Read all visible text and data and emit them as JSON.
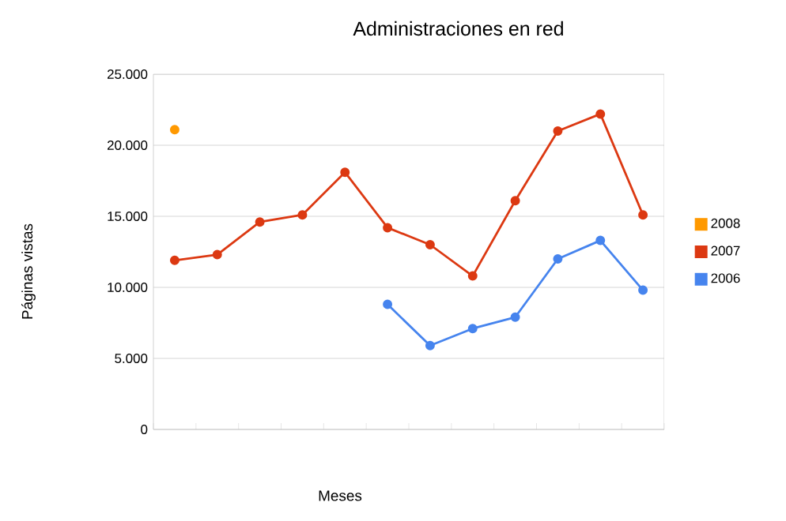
{
  "chart_data": {
    "type": "line",
    "title": "Administraciones en red",
    "xlabel": "Meses",
    "ylabel": "Páginas vistas",
    "categories": [
      null,
      null,
      null,
      null,
      null,
      null,
      null,
      null,
      null,
      null,
      null,
      null
    ],
    "series": [
      {
        "name": "2008",
        "color": "#ff9900",
        "values": [
          21100,
          null,
          null,
          null,
          null,
          null,
          null,
          null,
          null,
          null,
          null,
          null
        ]
      },
      {
        "name": "2007",
        "color": "#dc3912",
        "values": [
          11900,
          12300,
          14600,
          15100,
          18100,
          14200,
          13000,
          10800,
          16100,
          21000,
          22200,
          15100
        ]
      },
      {
        "name": "2006",
        "color": "#4684ee",
        "values": [
          null,
          null,
          null,
          null,
          null,
          8800,
          5900,
          7100,
          7900,
          12000,
          13300,
          9800
        ]
      }
    ],
    "ylim": [
      0,
      25000
    ],
    "yticks": [
      0,
      {
        "value": 5000,
        "label": "5.000"
      },
      {
        "value": 10000,
        "label": "10.000"
      },
      {
        "value": 15000,
        "label": "15.000"
      },
      {
        "value": 20000,
        "label": "20.000"
      },
      {
        "value": 25000,
        "label": "25.000"
      }
    ],
    "grid": "y",
    "legend": "right",
    "marker": "circle",
    "line_style": "solid"
  }
}
